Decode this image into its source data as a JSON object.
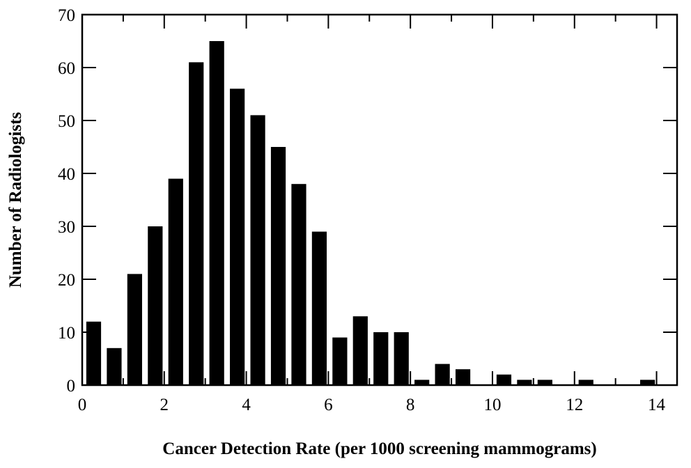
{
  "chart_data": {
    "type": "bar",
    "title": "",
    "xlabel": "Cancer Detection Rate (per 1000 screening mammograms)",
    "ylabel": "Number of Radiologists",
    "bin_width": 0.5,
    "bin_starts": [
      0,
      0.5,
      1,
      1.5,
      2,
      2.5,
      3,
      3.5,
      4,
      4.5,
      5,
      5.5,
      6,
      6.5,
      7,
      7.5,
      8,
      8.5,
      9,
      9.5,
      10,
      10.5,
      11,
      11.5,
      12,
      12.5,
      13,
      13.5
    ],
    "values": [
      12,
      7,
      21,
      30,
      39,
      61,
      65,
      56,
      51,
      45,
      38,
      29,
      9,
      13,
      10,
      10,
      1,
      4,
      3,
      0,
      2,
      1,
      1,
      0,
      1,
      0,
      0,
      1
    ],
    "xlim": [
      0,
      14.5
    ],
    "ylim": [
      0,
      70
    ],
    "xticks": [
      0,
      2,
      4,
      6,
      8,
      10,
      12,
      14
    ],
    "yticks": [
      0,
      10,
      20,
      30,
      40,
      50,
      60,
      70
    ],
    "grid": false,
    "bar_color": "#000000"
  }
}
